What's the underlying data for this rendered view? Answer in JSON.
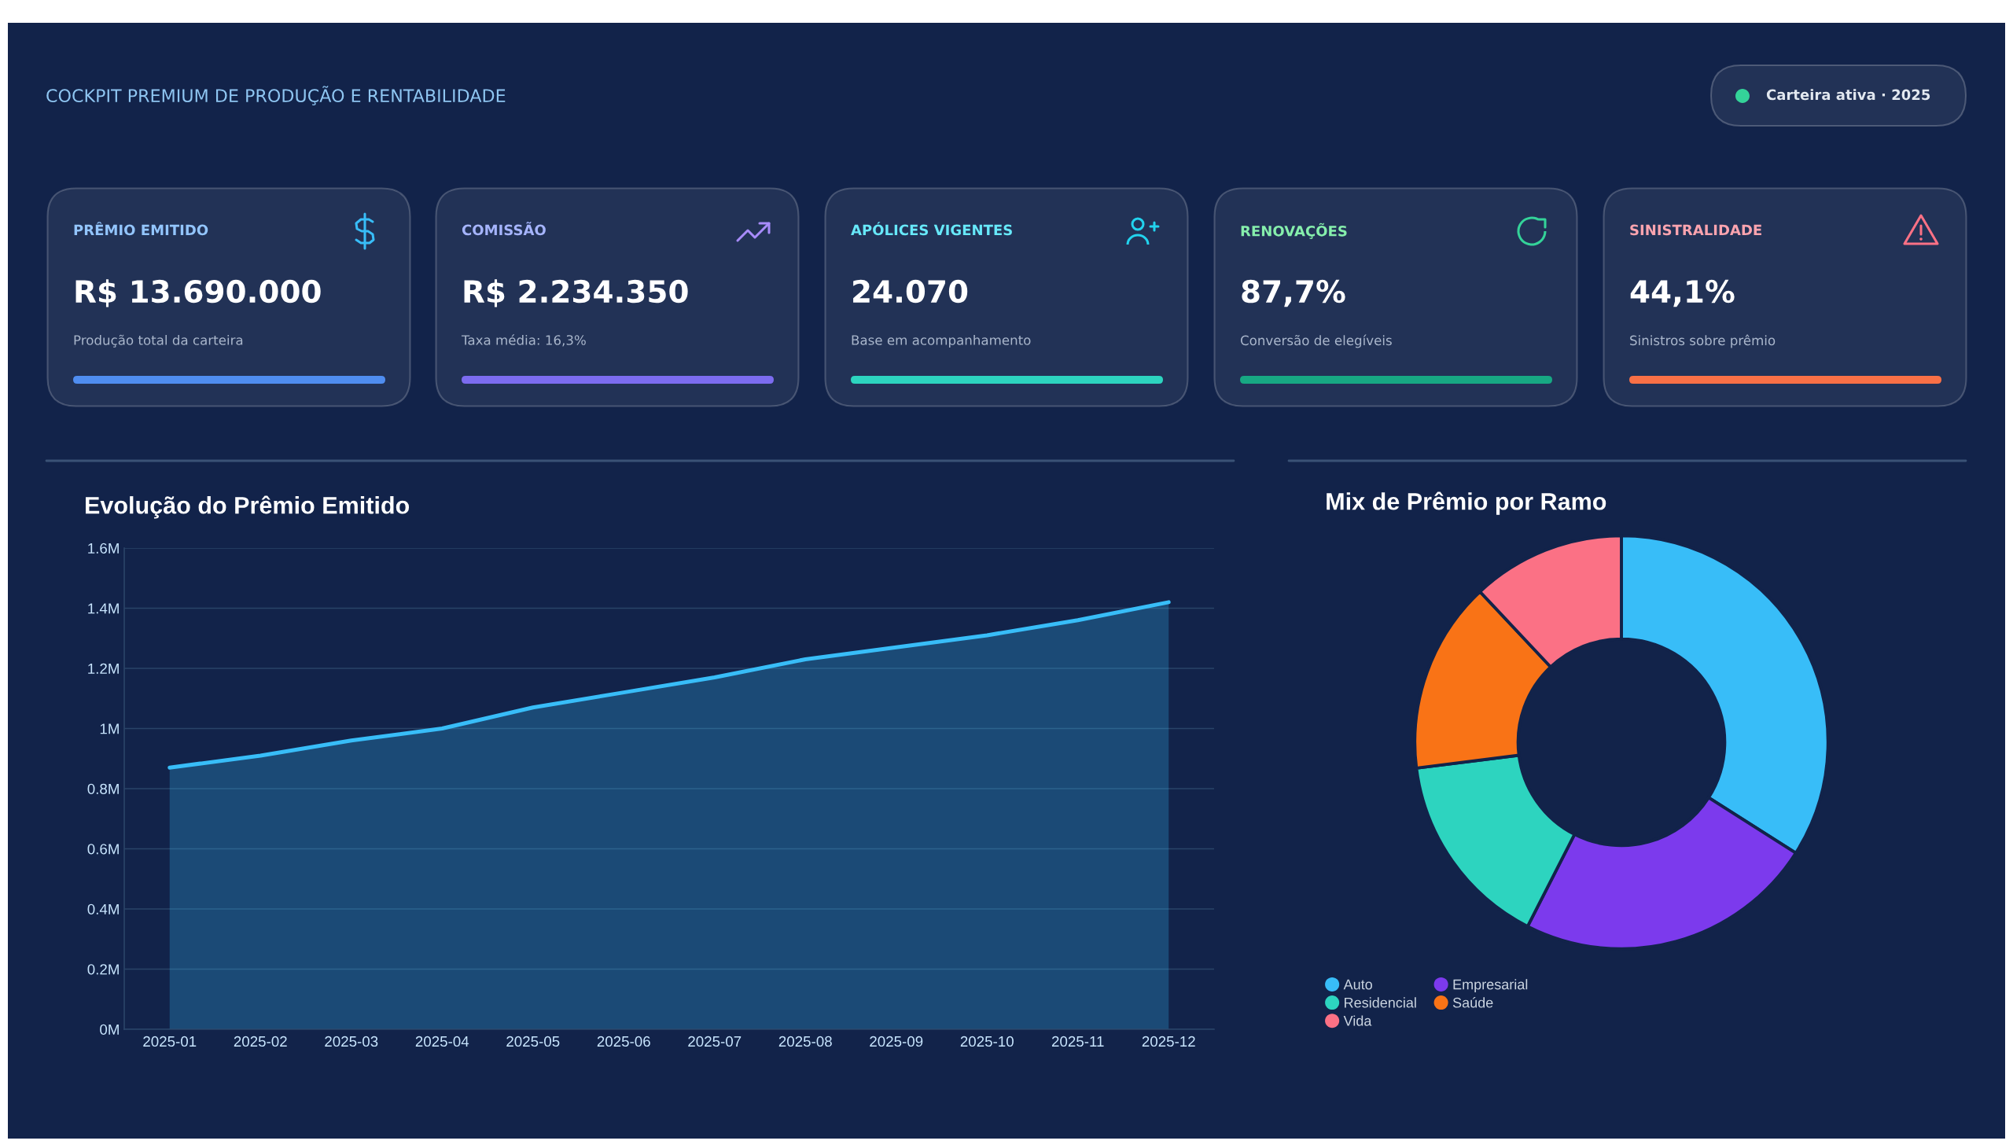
{
  "chart_data": [
    {
      "type": "other",
      "subtitle": "COCKPIT PREMIUM DE PRODUÇÃO E RENTABILIDADE",
      "annotations": [
        "Carteira ativa · 2025"
      ]
    },
    {
      "type": "other",
      "title": "PRÊMIO EMITIDO",
      "annotations": [
        "R$ 13.690.000",
        "Produção total da carteira"
      ]
    },
    {
      "type": "other",
      "title": "COMISSÃO",
      "annotations": [
        "R$ 2.234.350",
        "Taxa média: 16,3%"
      ]
    },
    {
      "type": "other",
      "title": "APÓLICES VIGENTES",
      "annotations": [
        "24.070",
        "Base em acompanhamento"
      ]
    },
    {
      "type": "other",
      "title": "RENOVAÇÕES",
      "annotations": [
        "87,7%",
        "Conversão de elegíveis"
      ]
    },
    {
      "type": "other",
      "title": "SINISTRALIDADE",
      "annotations": [
        "44,1%",
        "Sinistros sobre prêmio"
      ]
    },
    {
      "type": "area",
      "title": "Evolução do Prêmio Emitido",
      "categories": [
        "2025-01",
        "2025-02",
        "2025-03",
        "2025-04",
        "2025-05",
        "2025-06",
        "2025-07",
        "2025-08",
        "2025-09",
        "2025-10",
        "2025-11",
        "2025-12"
      ],
      "series": [
        {
          "color": "#38bdf8",
          "values": [
            870000,
            910000,
            960000,
            1000000,
            1070000,
            1120000,
            1170000,
            1230000,
            1270000,
            1310000,
            1360000,
            1420000
          ]
        }
      ],
      "ylim": [
        0,
        1600000
      ],
      "yticks": [
        {
          "value": 0,
          "label": "0M"
        },
        {
          "value": 200000,
          "label": "0.2M"
        },
        {
          "value": 400000,
          "label": "0.4M"
        },
        {
          "value": 600000,
          "label": "0.6M"
        },
        {
          "value": 800000,
          "label": "0.8M"
        },
        {
          "value": 1000000,
          "label": "1M"
        },
        {
          "value": 1200000,
          "label": "1.2M"
        },
        {
          "value": 1400000,
          "label": "1.4M"
        },
        {
          "value": 1600000,
          "label": "1.6M"
        }
      ],
      "grid": "y"
    },
    {
      "type": "donut",
      "title": "Mix de Prêmio por Ramo",
      "categories": [
        "Auto",
        "Empresarial",
        "Residencial",
        "Saúde",
        "Vida"
      ],
      "values": [
        34,
        23.5,
        15.5,
        15,
        12
      ],
      "colors": [
        "#38bdf8",
        "#7c3aed",
        "#2dd4bf",
        "#f97316",
        "#fb7185"
      ],
      "legend": "bottom left"
    }
  ]
}
